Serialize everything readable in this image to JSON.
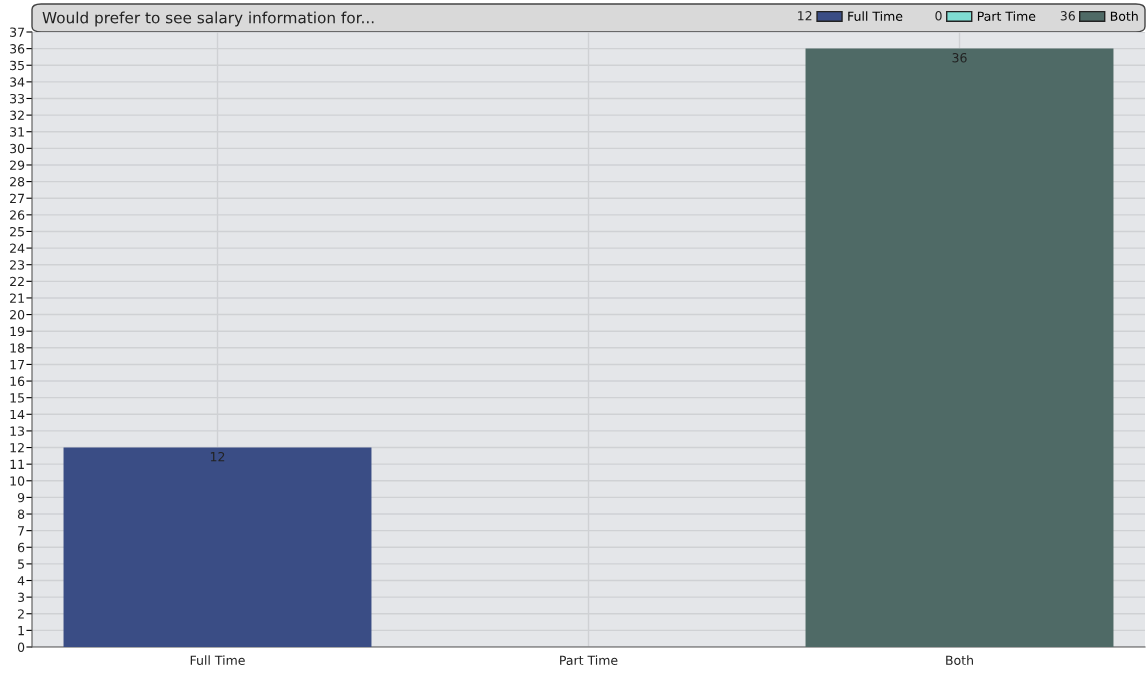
{
  "chart_data": {
    "type": "bar",
    "title": "Would prefer to see salary information for...",
    "categories": [
      "Full Time",
      "Part Time",
      "Both"
    ],
    "series": [
      {
        "name": "Full Time",
        "color": "#3a4d85",
        "values": [
          12,
          null,
          null
        ],
        "value_labels": [
          "12",
          null,
          null
        ]
      },
      {
        "name": "Part Time",
        "color": "#7fdcd2",
        "values": [
          null,
          0,
          null
        ],
        "value_labels": [
          null,
          null,
          null
        ]
      },
      {
        "name": "Both",
        "color": "#4f6a66",
        "values": [
          null,
          null,
          36
        ],
        "value_labels": [
          null,
          null,
          "36"
        ]
      }
    ],
    "ylim": [
      0,
      37
    ],
    "yticks": [
      0,
      1,
      2,
      3,
      4,
      5,
      6,
      7,
      8,
      9,
      10,
      11,
      12,
      13,
      14,
      15,
      16,
      17,
      18,
      19,
      20,
      21,
      22,
      23,
      24,
      25,
      26,
      27,
      28,
      29,
      30,
      31,
      32,
      33,
      34,
      35,
      36,
      37
    ],
    "annotations": [
      "12",
      "0",
      "36"
    ],
    "grid": true,
    "legend": "top right"
  }
}
